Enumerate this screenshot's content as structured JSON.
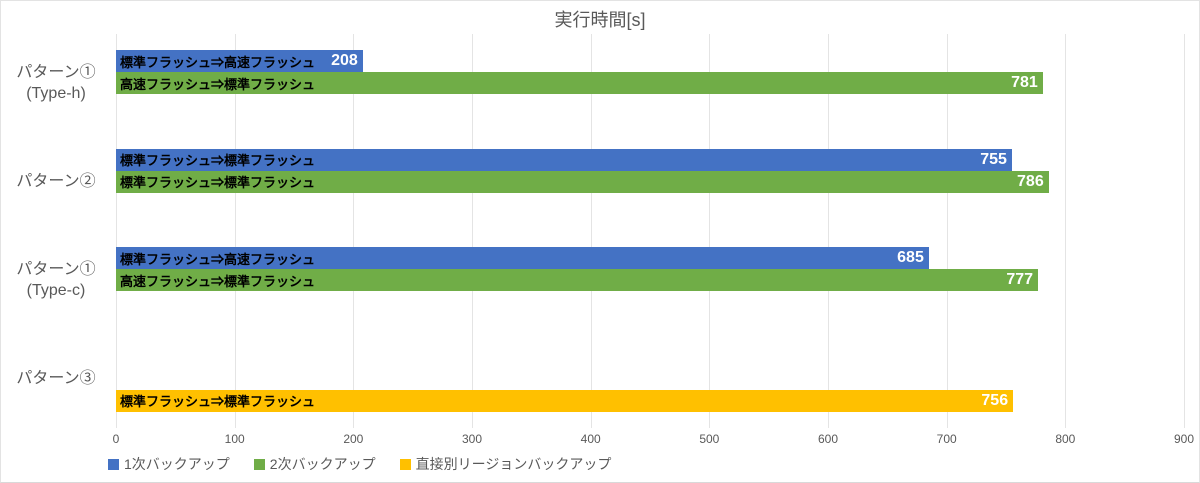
{
  "chart_data": {
    "type": "bar",
    "orientation": "horizontal",
    "title": "実行時間[s]",
    "categories": [
      {
        "lines": [
          "パターン①",
          "(Type-h)"
        ]
      },
      {
        "lines": [
          "パターン②"
        ]
      },
      {
        "lines": [
          "パターン①",
          "(Type-c)"
        ]
      },
      {
        "lines": [
          "パターン③"
        ]
      }
    ],
    "series": [
      {
        "name": "1次バックアップ",
        "color": "#4472C4",
        "values": [
          208,
          755,
          685,
          null
        ],
        "bar_labels": [
          "標準フラッシュ⇒高速フラッシュ",
          "標準フラッシュ⇒標準フラッシュ",
          "標準フラッシュ⇒高速フラッシュ",
          null
        ]
      },
      {
        "name": "2次バックアップ",
        "color": "#70AD47",
        "values": [
          781,
          786,
          777,
          null
        ],
        "bar_labels": [
          "高速フラッシュ⇒標準フラッシュ",
          "標準フラッシュ⇒標準フラッシュ",
          "高速フラッシュ⇒標準フラッシュ",
          null
        ]
      },
      {
        "name": "直接別リージョンバックアップ",
        "color": "#FFC000",
        "values": [
          null,
          null,
          null,
          756
        ],
        "bar_labels": [
          null,
          null,
          null,
          "標準フラッシュ⇒標準フラッシュ"
        ]
      }
    ],
    "xlim": [
      0,
      900
    ],
    "xticks": [
      "0",
      "100",
      "200",
      "300",
      "400",
      "500",
      "600",
      "700",
      "800",
      "900"
    ],
    "grid": true,
    "legend_position": "bottom-left",
    "colors": {
      "title_text": "#595959",
      "axis_text": "#595959",
      "category_text": "#595959",
      "bar_label_text": "#000000",
      "value_label_text": "#FFFFFF",
      "gridline": "#E4E4E4",
      "background": "#FFFFFF"
    }
  }
}
